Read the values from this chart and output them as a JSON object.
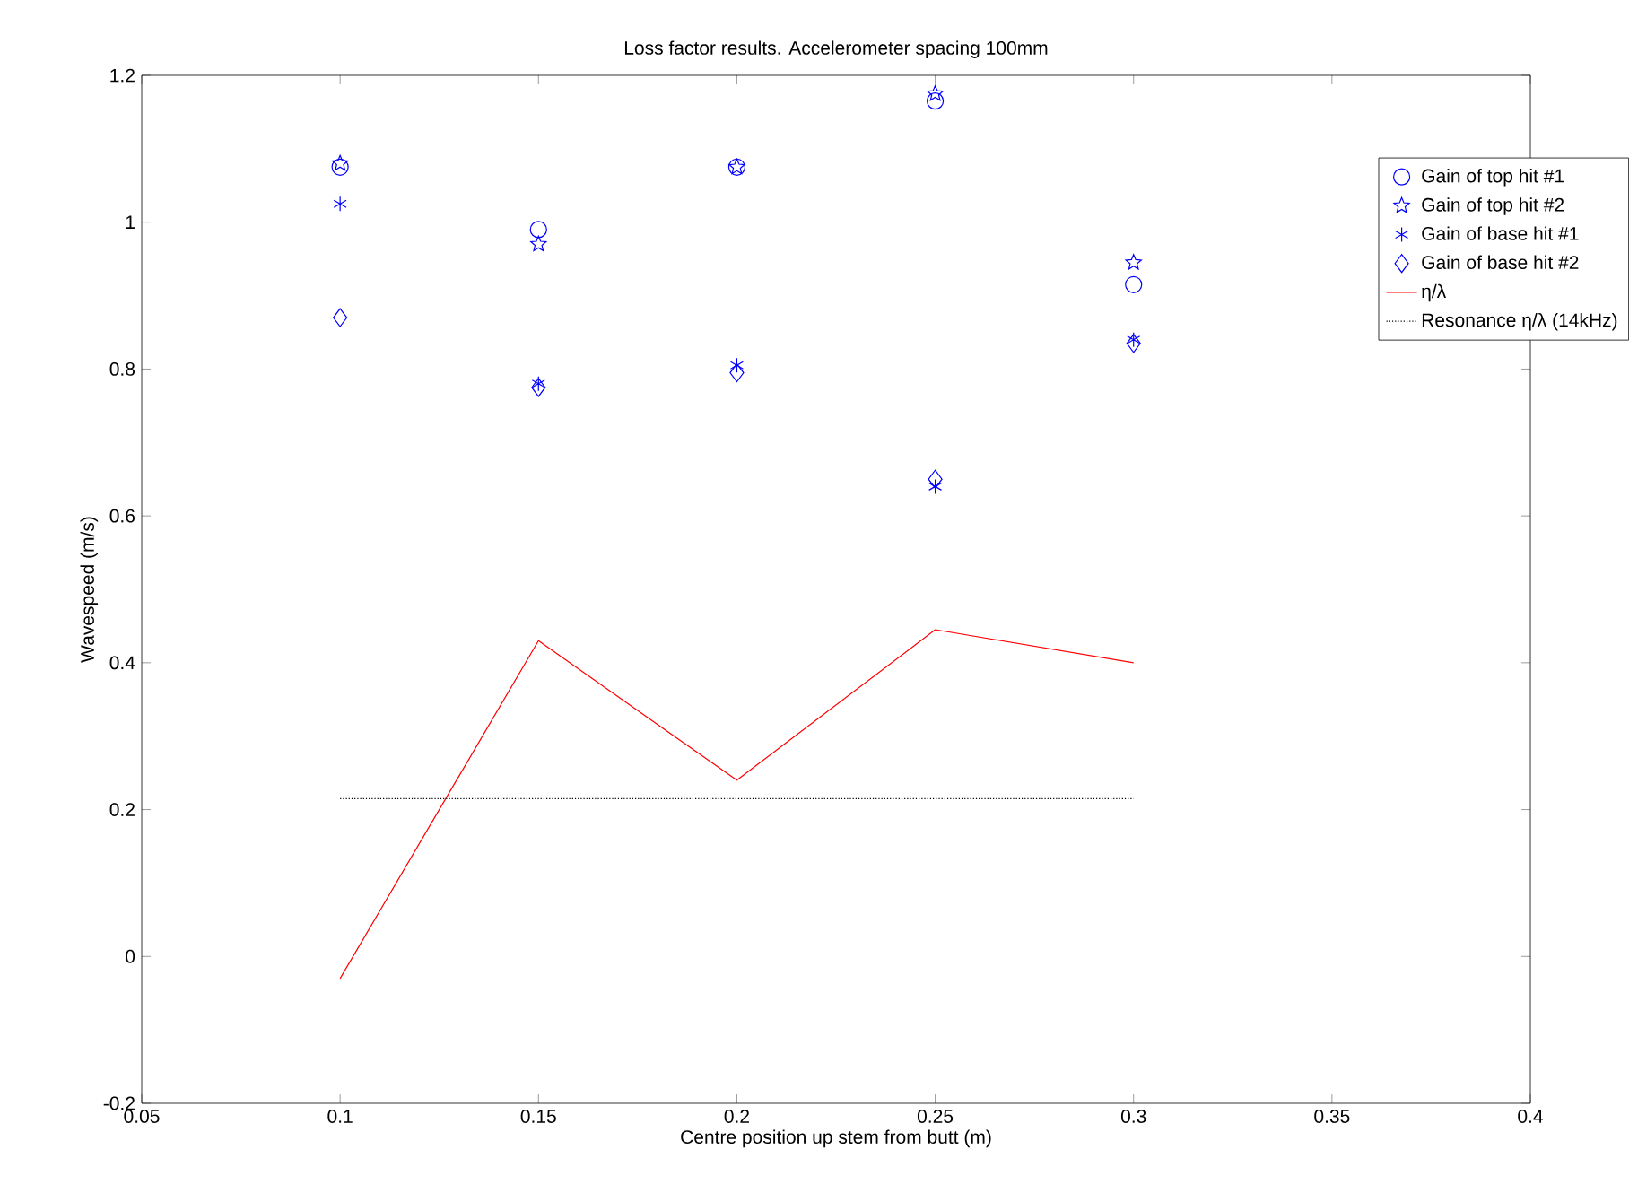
{
  "chart_data": {
    "type": "scatter",
    "title": "Loss factor results. Accelerometer spacing 100mm",
    "xlabel": "Centre position up stem from butt (m)",
    "ylabel": "Wavespeed (m/s)",
    "x": [
      0.1,
      0.15,
      0.2,
      0.25,
      0.3
    ],
    "series": [
      {
        "name": "Gain of top hit #1",
        "color": "#0000ff",
        "marker": "circle",
        "values": [
          1.075,
          0.99,
          1.075,
          1.165,
          0.915
        ]
      },
      {
        "name": "Gain of top hit #2",
        "color": "#0000ff",
        "marker": "star",
        "values": [
          1.08,
          0.97,
          1.075,
          1.175,
          0.945
        ]
      },
      {
        "name": "Gain of base hit #1",
        "color": "#0000ff",
        "marker": "cross",
        "values": [
          1.025,
          0.78,
          0.805,
          0.64,
          0.84
        ]
      },
      {
        "name": "Gain of base hit #2",
        "color": "#0000ff",
        "marker": "diamond",
        "values": [
          0.87,
          0.775,
          0.795,
          0.65,
          0.835
        ]
      },
      {
        "name": "η/λ",
        "type": "line",
        "color": "#ff0000",
        "line_style": "solid",
        "values": [
          -0.03,
          0.43,
          0.24,
          0.445,
          0.4
        ]
      },
      {
        "name": "Resonance η/λ (14kHz)",
        "type": "line",
        "color": "#000000",
        "line_style": "dotted",
        "x": [
          0.1,
          0.3
        ],
        "values": [
          0.215,
          0.215
        ]
      }
    ],
    "xlim": [
      0.05,
      0.4
    ],
    "xticks": [
      0.05,
      0.1,
      0.15,
      0.2,
      0.25,
      0.3,
      0.35,
      0.4
    ],
    "ylim": [
      -0.2,
      1.2
    ],
    "yticks": [
      -0.2,
      0,
      0.2,
      0.4,
      0.6,
      0.8,
      1,
      1.2
    ],
    "grid": false,
    "legend": "top right"
  }
}
